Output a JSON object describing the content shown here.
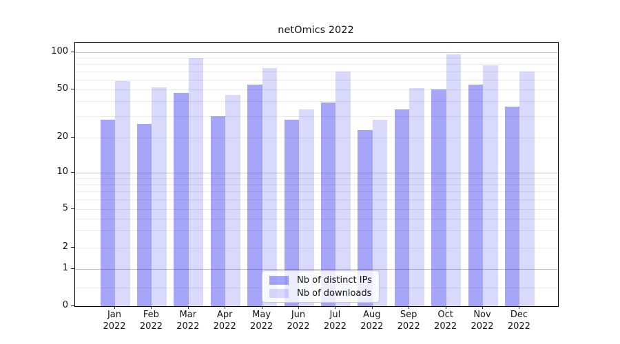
{
  "title": "netOmics 2022",
  "chart_data": {
    "type": "bar",
    "title": "netOmics 2022",
    "months": [
      "Jan",
      "Feb",
      "Mar",
      "Apr",
      "May",
      "Jun",
      "Jul",
      "Aug",
      "Sep",
      "Oct",
      "Nov",
      "Dec"
    ],
    "year": "2022",
    "categories": [
      "Jan 2022",
      "Feb 2022",
      "Mar 2022",
      "Apr 2022",
      "May 2022",
      "Jun 2022",
      "Jul 2022",
      "Aug 2022",
      "Sep 2022",
      "Oct 2022",
      "Nov 2022",
      "Dec 2022"
    ],
    "series": [
      {
        "name": "Nb of distinct IPs",
        "color": "rgba(0,0,235,0.35)",
        "values": [
          28,
          26,
          47,
          30,
          55,
          28,
          39,
          23,
          34,
          50,
          55,
          36
        ]
      },
      {
        "name": "Nb of downloads",
        "color": "rgba(0,0,235,0.15)",
        "values": [
          58,
          52,
          90,
          45,
          74,
          34,
          70,
          28,
          51,
          96,
          78,
          70
        ]
      }
    ],
    "y_axis": {
      "scale": "log-like (symlog/asinh), 0 pinned at baseline",
      "tick_values": [
        0,
        1,
        2,
        5,
        10,
        20,
        50,
        100
      ],
      "tick_labels": [
        "0",
        "1",
        "2",
        "5",
        "10",
        "20",
        "50",
        "100"
      ],
      "major_grid_values": [
        1,
        10,
        100
      ],
      "minor_grid_values": [
        0.5,
        2,
        3,
        4,
        5,
        6,
        7,
        8,
        9,
        20,
        30,
        40,
        50,
        60,
        70,
        80,
        90
      ],
      "anchors": [
        [
          0,
          0
        ],
        [
          1,
          0.141
        ],
        [
          2,
          0.2232
        ],
        [
          5,
          0.3681
        ],
        [
          10,
          0.5065
        ],
        [
          20,
          0.6397
        ],
        [
          50,
          0.8225
        ],
        [
          100,
          0.9634
        ]
      ],
      "ylim_top_approx": 118
    },
    "grid": {
      "major_color": "#c3c3c3",
      "minor_color": "#e9e9e9"
    },
    "legend": {
      "position": "lower center",
      "items": [
        "Nb of distinct IPs",
        "Nb of downloads"
      ]
    },
    "xlabel": "",
    "ylabel": ""
  }
}
